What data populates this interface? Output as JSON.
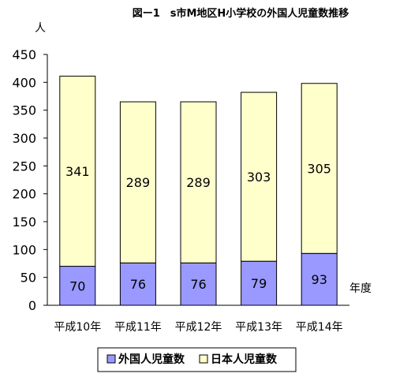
{
  "chart_data": {
    "type": "bar",
    "stacked": true,
    "title": "図ー1　s市M地区H小学校の外国人児童数推移",
    "ylabel": "人",
    "xlabel": "年度",
    "ylim": [
      0,
      450
    ],
    "yticks": [
      0,
      50,
      100,
      150,
      200,
      250,
      300,
      350,
      400,
      450
    ],
    "grid": false,
    "legend_position": "bottom",
    "categories": [
      "平成10年",
      "平成11年",
      "平成12年",
      "平成13年",
      "平成14年"
    ],
    "series": [
      {
        "name": "外国人児童数",
        "values": [
          70,
          76,
          76,
          79,
          93
        ],
        "color": "#9999ff"
      },
      {
        "name": "日本人児童数",
        "values": [
          341,
          289,
          289,
          303,
          305
        ],
        "color": "#ffffcc"
      }
    ]
  }
}
